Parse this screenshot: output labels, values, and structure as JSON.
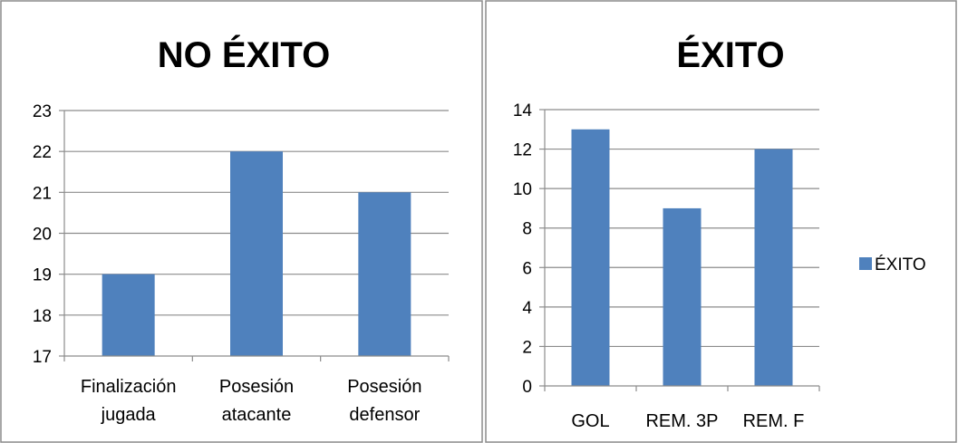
{
  "chart_data": [
    {
      "type": "bar",
      "title": "NO ÉXITO",
      "categories": [
        "Finalización jugada",
        "Posesión atacante",
        "Posesión defensor"
      ],
      "series": [
        {
          "values": [
            19,
            22,
            21
          ]
        }
      ],
      "ylim": [
        17,
        23
      ],
      "yticks": [
        17,
        18,
        19,
        20,
        21,
        22,
        23
      ],
      "grid": true,
      "legend": "none",
      "bar_color": "#4F81BD"
    },
    {
      "type": "bar",
      "title": "ÉXITO",
      "categories": [
        "GOL",
        "REM. 3P",
        "REM. F"
      ],
      "series": [
        {
          "name": "ÉXITO",
          "values": [
            13,
            9,
            12
          ]
        }
      ],
      "ylim": [
        0,
        14
      ],
      "yticks": [
        0,
        2,
        4,
        6,
        8,
        10,
        12,
        14
      ],
      "grid": true,
      "legend": "right",
      "bar_color": "#4F81BD"
    }
  ]
}
